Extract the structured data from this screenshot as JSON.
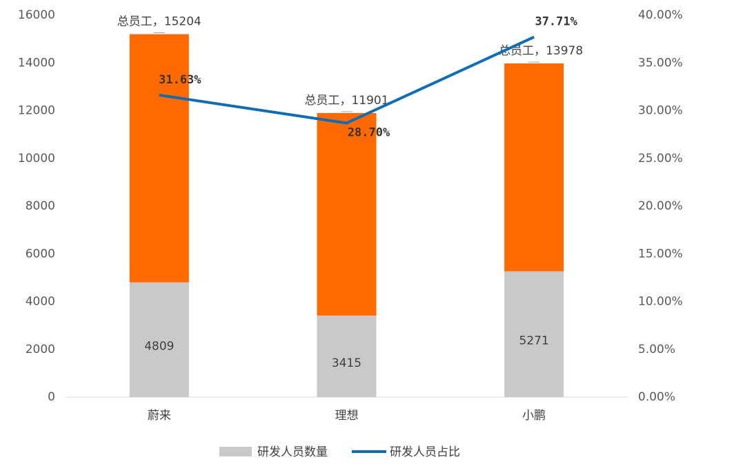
{
  "chart_data": {
    "type": "bar-line",
    "categories": [
      "蔚来",
      "理想",
      "小鹏"
    ],
    "series": [
      {
        "name": "研发人员数量",
        "color": "#c9c9c9",
        "values": [
          4809,
          3415,
          5271
        ],
        "show_labels": true
      },
      {
        "color": "#ff6a00",
        "values": [
          10395,
          8486,
          8707
        ]
      },
      {
        "name": "研发人员占比",
        "color": "#0a6ebd",
        "type": "line",
        "axis": "y2",
        "values": [
          31.63,
          28.7,
          37.71
        ],
        "value_labels": [
          "31.63%",
          "28.70%",
          "37.71%"
        ]
      }
    ],
    "totals": {
      "values": [
        15204,
        11901,
        13978
      ],
      "value_labels": [
        "总员工，15204",
        "总员工，11901",
        "总员工，13978"
      ]
    },
    "ylim": [
      0,
      16000
    ],
    "yticks": [
      0,
      2000,
      4000,
      6000,
      8000,
      10000,
      12000,
      14000,
      16000
    ],
    "y2lim": [
      0,
      40
    ],
    "y2ticks": [
      {
        "value": 0,
        "label": "0.00%"
      },
      {
        "value": 5,
        "label": "5.00%"
      },
      {
        "value": 10,
        "label": "10.00%"
      },
      {
        "value": 15,
        "label": "15.00%"
      },
      {
        "value": 20,
        "label": "20.00%"
      },
      {
        "value": 25,
        "label": "25.00%"
      },
      {
        "value": 30,
        "label": "30.00%"
      },
      {
        "value": 35,
        "label": "35.00%"
      },
      {
        "value": 40,
        "label": "40.00%"
      }
    ],
    "grid": false,
    "legend": "bottom"
  }
}
